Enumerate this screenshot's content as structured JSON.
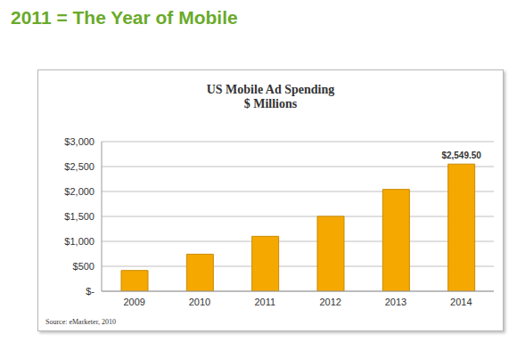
{
  "header": {
    "title": "2011 = The Year of Mobile"
  },
  "chart_data": {
    "type": "bar",
    "title": "US Mobile Ad Spending",
    "subtitle": "$ Millions",
    "annotation": "Source: eMarketer, 2010",
    "categories": [
      "2009",
      "2010",
      "2011",
      "2012",
      "2013",
      "2014"
    ],
    "values": [
      416,
      743,
      1101,
      1502,
      2042,
      2549.5
    ],
    "value_labels": [
      null,
      null,
      null,
      null,
      null,
      "$2,549.50"
    ],
    "data_labels": true,
    "color": "#f5a800",
    "ylim": [
      0,
      3000
    ],
    "yticks": [
      {
        "value": 0,
        "label": "$-"
      },
      {
        "value": 500,
        "label": "$500"
      },
      {
        "value": 1000,
        "label": "$1,000"
      },
      {
        "value": 1500,
        "label": "$1,500"
      },
      {
        "value": 2000,
        "label": "$2,000"
      },
      {
        "value": 2500,
        "label": "$2,500"
      },
      {
        "value": 3000,
        "label": "$3,000"
      }
    ],
    "grid": true
  }
}
